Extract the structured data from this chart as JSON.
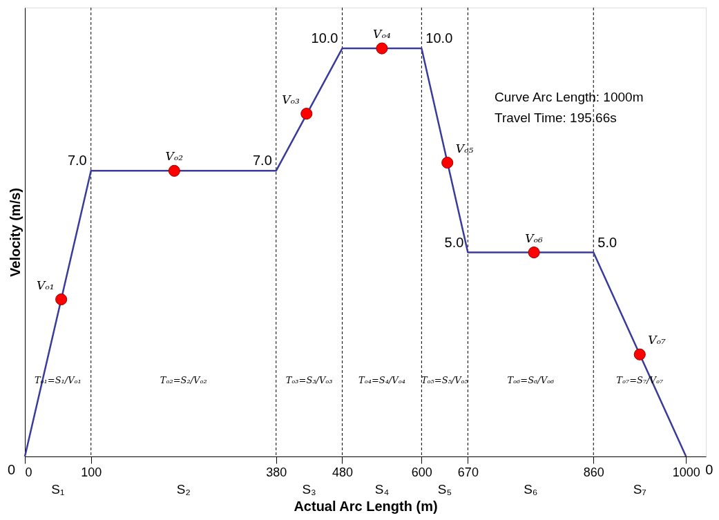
{
  "chart_data": {
    "type": "line",
    "xlabel": "Actual Arc Length (m)",
    "ylabel": "Velocity (m/s)",
    "xlim": [
      0,
      1030
    ],
    "ylim": [
      0,
      11
    ],
    "xticks": [
      0,
      100,
      380,
      480,
      600,
      670,
      860,
      1000
    ],
    "tick_labels": "x",
    "grid": false,
    "line_style": "solid",
    "series": [
      {
        "color": "#3a3a9c",
        "x": [
          0,
          100,
          380,
          480,
          600,
          670,
          860,
          1000
        ],
        "values": [
          0,
          7,
          7,
          10,
          10,
          5,
          5,
          0
        ],
        "value_labels": [
          "0",
          "7.0",
          "7.0",
          "10.0",
          "10.0",
          "5.0",
          "5.0",
          "0"
        ]
      },
      {
        "type": "scatter",
        "marker": "circle",
        "color": "#ff0000",
        "x": [
          55,
          226,
          426,
          540,
          639,
          770,
          930
        ],
        "values": [
          3.85,
          7,
          8.4,
          10,
          7.2,
          5,
          2.5
        ]
      }
    ],
    "ref_lines": [
      {
        "axis": "x",
        "value": 100,
        "color": "#000000",
        "line_style": "dashed"
      },
      {
        "axis": "x",
        "value": 380,
        "color": "#000000",
        "line_style": "dashed"
      },
      {
        "axis": "x",
        "value": 480,
        "color": "#000000",
        "line_style": "dashed"
      },
      {
        "axis": "x",
        "value": 600,
        "color": "#000000",
        "line_style": "dashed"
      },
      {
        "axis": "x",
        "value": 670,
        "color": "#000000",
        "line_style": "dashed"
      },
      {
        "axis": "x",
        "value": 860,
        "color": "#000000",
        "line_style": "dashed"
      }
    ],
    "annotations": [
      {
        "text": "Vₒ₁",
        "x": 55,
        "y": 3.85
      },
      {
        "text": "Vₒ₂",
        "x": 226,
        "y": 7
      },
      {
        "text": "Vₒ₃",
        "x": 426,
        "y": 8.4
      },
      {
        "text": "Vₒ₄",
        "x": 540,
        "y": 10
      },
      {
        "text": "Vₒ₅",
        "x": 639,
        "y": 7.2
      },
      {
        "text": "Vₒ₆",
        "x": 770,
        "y": 5
      },
      {
        "text": "Vₒ₇",
        "x": 930,
        "y": 2.5
      },
      "Tₒ₁=S₁/Vₒ₁",
      "Tₒ₂=S₂/Vₒ₂",
      "Tₒ₃=S₃/Vₒ₃",
      "Tₒ₄=S₄/Vₒ₄",
      "Tₒ₅=S₅/Vₒ₅",
      "Tₒ₆=S₆/Vₒ₆",
      "Tₒ₇=S₇/Vₒ₇",
      "S₁",
      "S₂",
      "S₃",
      "S₄",
      "S₅",
      "S₆",
      "S₇",
      "Curve Arc Length: 1000m",
      "Travel Time: 195.66s"
    ]
  }
}
